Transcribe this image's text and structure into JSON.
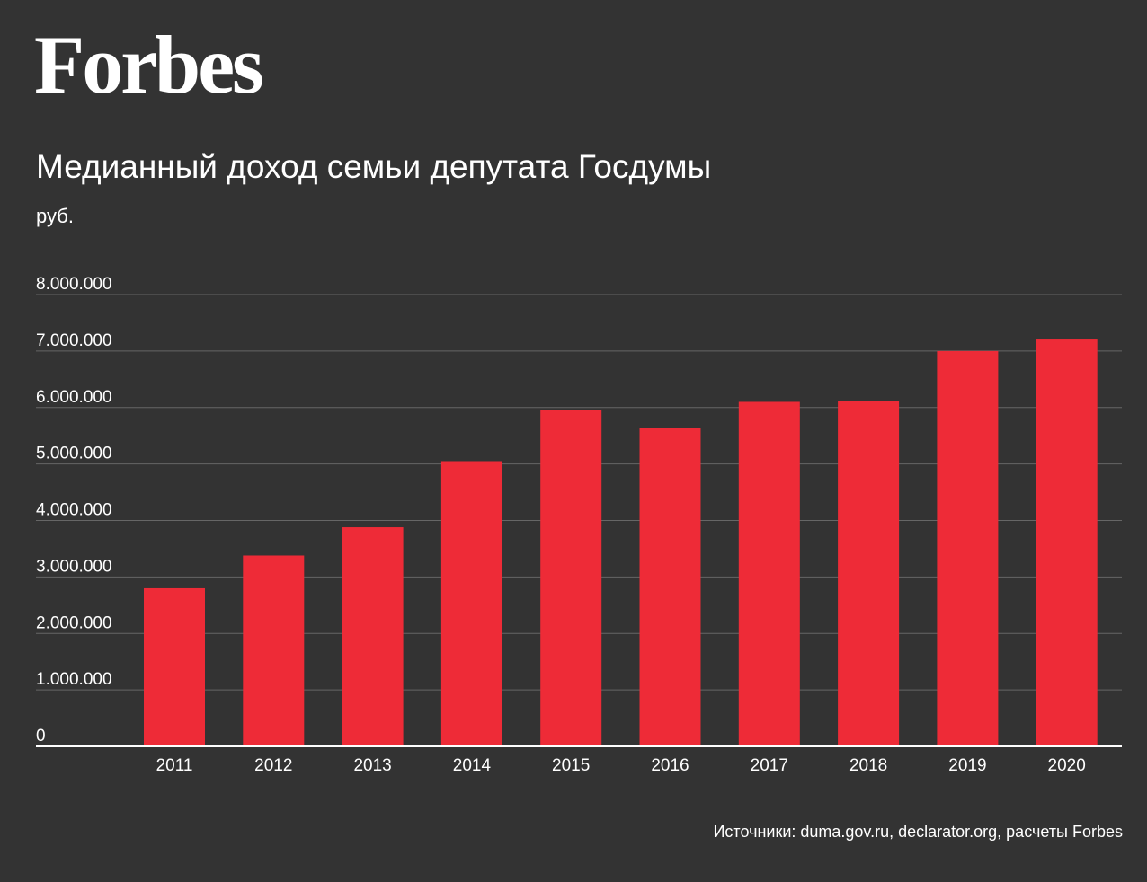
{
  "brand": {
    "logo_text": "Forbes"
  },
  "colors": {
    "background": "#333333",
    "bar": "#ee2b37",
    "grid": "#666666",
    "text": "#ffffff"
  },
  "source_note": "Источники: duma.gov.ru, declarator.org, расчеты Forbes",
  "chart_data": {
    "type": "bar",
    "title": "Медианный доход семьи депутата Госдумы",
    "ylabel": "руб.",
    "xlabel": "",
    "categories": [
      "2011",
      "2012",
      "2013",
      "2014",
      "2015",
      "2016",
      "2017",
      "2018",
      "2019",
      "2020"
    ],
    "values": [
      2800000,
      3380000,
      3880000,
      5050000,
      5950000,
      5640000,
      6100000,
      6120000,
      7000000,
      7220000
    ],
    "ylim": [
      0,
      8000000
    ],
    "yticks": [
      {
        "value": 0,
        "label": "0"
      },
      {
        "value": 1000000,
        "label": "1.000.000"
      },
      {
        "value": 2000000,
        "label": "2.000.000"
      },
      {
        "value": 3000000,
        "label": "3.000.000"
      },
      {
        "value": 4000000,
        "label": "4.000.000"
      },
      {
        "value": 5000000,
        "label": "5.000.000"
      },
      {
        "value": 6000000,
        "label": "6.000.000"
      },
      {
        "value": 7000000,
        "label": "7.000.000"
      },
      {
        "value": 8000000,
        "label": "8.000.000"
      }
    ],
    "grid": true,
    "legend": "none"
  }
}
